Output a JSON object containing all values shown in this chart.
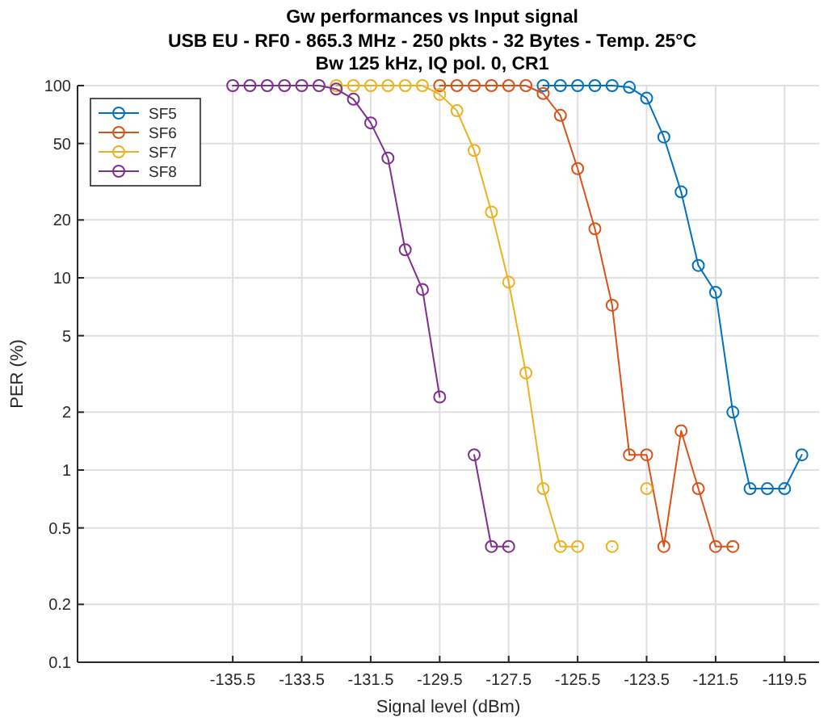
{
  "chart_data": {
    "type": "line",
    "title": "Gw performances vs Input signal",
    "subtitle": "USB EU - RF0 - 865.3 MHz - 250 pkts - 32 Bytes - Temp. 25°C\nBw 125 kHz, IQ pol. 0, CR1",
    "xlabel": "Signal level (dBm)",
    "ylabel": "PER (%)",
    "log": "y",
    "grid": true,
    "legend": "top left",
    "marker": "circle",
    "line_style": "solid",
    "xlim": [
      -140,
      -118.5
    ],
    "xticks": [
      -135.5,
      -133.5,
      -131.5,
      -129.5,
      -127.5,
      -125.5,
      -123.5,
      -121.5,
      -119.5
    ],
    "ylim": [
      0.1,
      100
    ],
    "yticks": [
      0.1,
      0.2,
      0.5,
      1,
      2,
      5,
      10,
      20,
      50,
      100
    ],
    "series": [
      {
        "name": "SF5",
        "color": "#0072bd",
        "x": [
          -126.5,
          -126,
          -125.5,
          -125,
          -124.5,
          -124,
          -123.5,
          -123,
          -122.5,
          -122,
          -121.5,
          -121,
          -120.5,
          -120,
          -119.5,
          -119
        ],
        "values": [
          100,
          100,
          100,
          100,
          100,
          98,
          86,
          54,
          28,
          11.6,
          8.4,
          2,
          0.8,
          0.8,
          0.8,
          1.2
        ]
      },
      {
        "name": "SF6",
        "color": "#d95319",
        "x": [
          -129.5,
          -129,
          -128.5,
          -128,
          -127.5,
          -127,
          -126.5,
          -126,
          -125.5,
          -125,
          -124.5,
          -124,
          -123.5,
          -123,
          -122.5,
          -122,
          -121.5,
          -121
        ],
        "values": [
          100,
          100,
          100,
          100,
          100,
          100,
          91,
          70,
          37,
          18,
          7.2,
          1.2,
          1.2,
          0.4,
          1.6,
          0.8,
          0.4,
          0.4
        ]
      },
      {
        "name": "SF7",
        "color": "#edb120",
        "x": [
          -132.5,
          -132,
          -131.5,
          -131,
          -130.5,
          -130,
          -129.5,
          -129,
          -128.5,
          -128,
          -127.5,
          -127,
          -126.5,
          -126,
          -125.5,
          -125,
          -124.5,
          -124,
          -123.5
        ],
        "values": [
          100,
          100,
          100,
          100,
          100,
          100,
          90,
          74,
          46,
          22,
          9.5,
          3.2,
          0.8,
          0.4,
          0.4,
          null,
          0.4,
          null,
          0.8
        ]
      },
      {
        "name": "SF8",
        "color": "#7e2f8e",
        "x": [
          -135.5,
          -135,
          -134.5,
          -134,
          -133.5,
          -133,
          -132.5,
          -132,
          -131.5,
          -131,
          -130.5,
          -130,
          -129.5,
          -129,
          -128.5,
          -128,
          -127.5
        ],
        "values": [
          100,
          100,
          100,
          100,
          100,
          100,
          96,
          85,
          64,
          42,
          14,
          8.7,
          2.4,
          null,
          1.2,
          0.4,
          0.4
        ]
      }
    ]
  }
}
